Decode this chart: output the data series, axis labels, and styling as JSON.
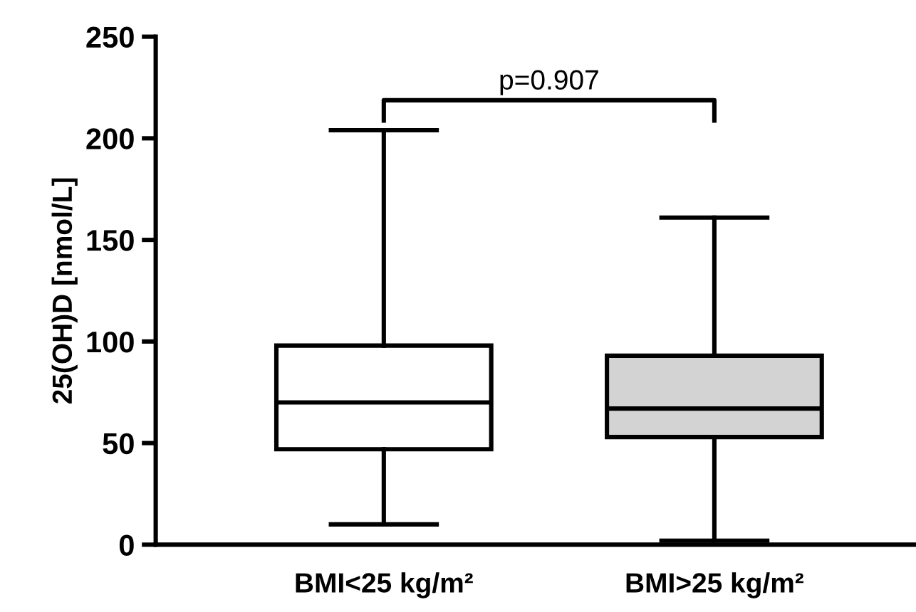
{
  "chart_data": {
    "type": "box",
    "ylabel": "25(OH)D [nmol/L]",
    "categories": [
      "BMI<25 kg/m²",
      "BMI>25 kg/m²"
    ],
    "boxes": [
      {
        "low": 10,
        "q1": 47,
        "median": 70,
        "q3": 98,
        "high": 204
      },
      {
        "low": 2,
        "q1": 53,
        "median": 67,
        "q3": 93,
        "high": 161
      }
    ],
    "colors": [
      "#ffffff",
      "#d3d3d3"
    ],
    "ylim": [
      0,
      250
    ],
    "yticks": [
      0,
      50,
      100,
      150,
      200,
      250
    ],
    "annotations": [
      "p=0.907"
    ],
    "grid": false
  }
}
